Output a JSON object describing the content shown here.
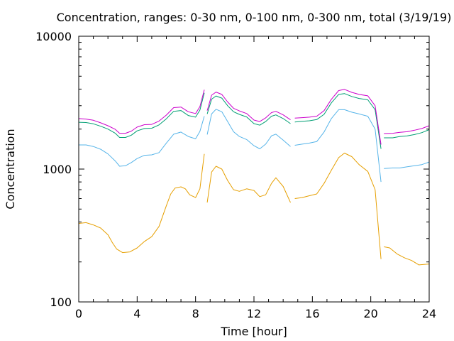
{
  "chart_data": {
    "type": "line",
    "title": "Concentration, ranges: 0-30 nm, 0-100 nm, 0-300 nm, total (3/19/19)",
    "xlabel": "Time [hour]",
    "ylabel": "Concentration",
    "xlim": [
      0,
      24
    ],
    "ylim": [
      100,
      10000
    ],
    "yscale": "log",
    "grid": false,
    "legend": "none",
    "x_ticks": [
      "0",
      "4",
      "8",
      "12",
      "16",
      "20",
      "24"
    ],
    "y_ticks": [
      "100",
      "1000",
      "10000"
    ],
    "series": [
      {
        "color": "#e69f00",
        "segments": [
          [
            [
              0,
              390
            ],
            [
              0.5,
              395
            ],
            [
              1,
              380
            ],
            [
              1.5,
              360
            ],
            [
              2,
              320
            ],
            [
              2.3,
              280
            ],
            [
              2.6,
              250
            ],
            [
              3,
              235
            ],
            [
              3.5,
              238
            ],
            [
              4,
              255
            ],
            [
              4.5,
              285
            ],
            [
              5,
              310
            ],
            [
              5.5,
              370
            ],
            [
              6,
              530
            ],
            [
              6.3,
              650
            ],
            [
              6.6,
              720
            ],
            [
              7,
              735
            ],
            [
              7.3,
              710
            ],
            [
              7.6,
              640
            ],
            [
              8,
              610
            ],
            [
              8.3,
              710
            ],
            [
              8.6,
              1300
            ]
          ],
          [
            [
              8.8,
              560
            ],
            [
              9.1,
              950
            ],
            [
              9.4,
              1050
            ],
            [
              9.8,
              1000
            ],
            [
              10.2,
              820
            ],
            [
              10.6,
              700
            ],
            [
              11,
              680
            ],
            [
              11.5,
              710
            ],
            [
              12,
              690
            ],
            [
              12.4,
              620
            ],
            [
              12.8,
              640
            ],
            [
              13.2,
              780
            ],
            [
              13.5,
              860
            ],
            [
              14,
              740
            ],
            [
              14.5,
              560
            ]
          ],
          [
            [
              14.8,
              600
            ],
            [
              15.3,
              610
            ],
            [
              15.8,
              630
            ],
            [
              16.3,
              650
            ],
            [
              16.8,
              780
            ],
            [
              17.3,
              980
            ],
            [
              17.8,
              1220
            ],
            [
              18.2,
              1320
            ],
            [
              18.7,
              1240
            ],
            [
              19.2,
              1080
            ],
            [
              19.8,
              960
            ],
            [
              20.3,
              700
            ],
            [
              20.7,
              210
            ]
          ],
          [
            [
              20.9,
              260
            ],
            [
              21.3,
              255
            ],
            [
              21.8,
              230
            ],
            [
              22.3,
              215
            ],
            [
              22.8,
              205
            ],
            [
              23.3,
              190
            ],
            [
              24,
              193
            ]
          ]
        ]
      },
      {
        "color": "#56b4e9",
        "segments": [
          [
            [
              0,
              1520
            ],
            [
              0.5,
              1520
            ],
            [
              1,
              1480
            ],
            [
              1.5,
              1410
            ],
            [
              2,
              1300
            ],
            [
              2.5,
              1150
            ],
            [
              2.8,
              1050
            ],
            [
              3.2,
              1060
            ],
            [
              3.6,
              1120
            ],
            [
              4,
              1200
            ],
            [
              4.5,
              1270
            ],
            [
              5,
              1280
            ],
            [
              5.5,
              1330
            ],
            [
              6,
              1570
            ],
            [
              6.5,
              1830
            ],
            [
              7,
              1900
            ],
            [
              7.5,
              1760
            ],
            [
              8,
              1690
            ],
            [
              8.3,
              1920
            ],
            [
              8.6,
              2500
            ]
          ],
          [
            [
              8.8,
              1820
            ],
            [
              9.1,
              2600
            ],
            [
              9.4,
              2820
            ],
            [
              9.8,
              2700
            ],
            [
              10.2,
              2280
            ],
            [
              10.6,
              1910
            ],
            [
              11,
              1760
            ],
            [
              11.5,
              1670
            ],
            [
              12,
              1500
            ],
            [
              12.4,
              1420
            ],
            [
              12.8,
              1540
            ],
            [
              13.2,
              1780
            ],
            [
              13.5,
              1830
            ],
            [
              14,
              1650
            ],
            [
              14.5,
              1480
            ]
          ],
          [
            [
              14.8,
              1510
            ],
            [
              15.3,
              1540
            ],
            [
              15.8,
              1570
            ],
            [
              16.3,
              1610
            ],
            [
              16.8,
              1900
            ],
            [
              17.3,
              2400
            ],
            [
              17.8,
              2800
            ],
            [
              18.2,
              2800
            ],
            [
              18.7,
              2680
            ],
            [
              19.2,
              2600
            ],
            [
              19.8,
              2500
            ],
            [
              20.3,
              2000
            ],
            [
              20.7,
              800
            ]
          ],
          [
            [
              20.9,
              1010
            ],
            [
              21.5,
              1020
            ],
            [
              22,
              1020
            ],
            [
              22.5,
              1040
            ],
            [
              23,
              1060
            ],
            [
              23.5,
              1080
            ],
            [
              24,
              1130
            ]
          ]
        ]
      },
      {
        "color": "#009e73",
        "segments": [
          [
            [
              0,
              2250
            ],
            [
              0.5,
              2240
            ],
            [
              1,
              2190
            ],
            [
              1.5,
              2100
            ],
            [
              2,
              2000
            ],
            [
              2.5,
              1860
            ],
            [
              2.8,
              1730
            ],
            [
              3.2,
              1730
            ],
            [
              3.6,
              1800
            ],
            [
              4,
              1940
            ],
            [
              4.5,
              2020
            ],
            [
              5,
              2030
            ],
            [
              5.5,
              2150
            ],
            [
              6,
              2390
            ],
            [
              6.5,
              2720
            ],
            [
              7,
              2760
            ],
            [
              7.5,
              2530
            ],
            [
              8,
              2460
            ],
            [
              8.3,
              2780
            ],
            [
              8.6,
              3750
            ]
          ],
          [
            [
              8.8,
              2600
            ],
            [
              9.1,
              3360
            ],
            [
              9.4,
              3550
            ],
            [
              9.8,
              3420
            ],
            [
              10.2,
              3000
            ],
            [
              10.6,
              2700
            ],
            [
              11,
              2580
            ],
            [
              11.5,
              2470
            ],
            [
              12,
              2200
            ],
            [
              12.4,
              2140
            ],
            [
              12.8,
              2280
            ],
            [
              13.2,
              2500
            ],
            [
              13.5,
              2560
            ],
            [
              14,
              2400
            ],
            [
              14.5,
              2200
            ]
          ],
          [
            [
              14.8,
              2260
            ],
            [
              15.3,
              2290
            ],
            [
              15.8,
              2310
            ],
            [
              16.3,
              2360
            ],
            [
              16.8,
              2580
            ],
            [
              17.3,
              3150
            ],
            [
              17.8,
              3650
            ],
            [
              18.2,
              3700
            ],
            [
              18.7,
              3520
            ],
            [
              19.2,
              3400
            ],
            [
              19.8,
              3320
            ],
            [
              20.3,
              2800
            ],
            [
              20.7,
              1420
            ]
          ],
          [
            [
              20.9,
              1720
            ],
            [
              21.5,
              1720
            ],
            [
              22,
              1760
            ],
            [
              22.5,
              1780
            ],
            [
              23,
              1820
            ],
            [
              23.5,
              1880
            ],
            [
              24,
              1980
            ]
          ]
        ]
      },
      {
        "color": "#cc00cc",
        "segments": [
          [
            [
              0,
              2400
            ],
            [
              0.5,
              2380
            ],
            [
              1,
              2330
            ],
            [
              1.5,
              2230
            ],
            [
              2,
              2120
            ],
            [
              2.5,
              1990
            ],
            [
              2.8,
              1860
            ],
            [
              3.2,
              1860
            ],
            [
              3.6,
              1930
            ],
            [
              4,
              2070
            ],
            [
              4.5,
              2160
            ],
            [
              5,
              2170
            ],
            [
              5.5,
              2300
            ],
            [
              6,
              2550
            ],
            [
              6.5,
              2900
            ],
            [
              7,
              2930
            ],
            [
              7.5,
              2700
            ],
            [
              8,
              2620
            ],
            [
              8.3,
              2950
            ],
            [
              8.6,
              3950
            ]
          ],
          [
            [
              8.8,
              2750
            ],
            [
              9.1,
              3600
            ],
            [
              9.4,
              3800
            ],
            [
              9.8,
              3650
            ],
            [
              10.2,
              3200
            ],
            [
              10.6,
              2870
            ],
            [
              11,
              2740
            ],
            [
              11.5,
              2620
            ],
            [
              12,
              2340
            ],
            [
              12.4,
              2280
            ],
            [
              12.8,
              2430
            ],
            [
              13.2,
              2660
            ],
            [
              13.5,
              2720
            ],
            [
              14,
              2560
            ],
            [
              14.5,
              2350
            ]
          ],
          [
            [
              14.8,
              2420
            ],
            [
              15.3,
              2440
            ],
            [
              15.8,
              2460
            ],
            [
              16.3,
              2500
            ],
            [
              16.8,
              2750
            ],
            [
              17.3,
              3350
            ],
            [
              17.8,
              3900
            ],
            [
              18.2,
              3980
            ],
            [
              18.7,
              3780
            ],
            [
              19.2,
              3650
            ],
            [
              19.8,
              3560
            ],
            [
              20.3,
              3000
            ],
            [
              20.7,
              1530
            ]
          ],
          [
            [
              20.9,
              1850
            ],
            [
              21.5,
              1860
            ],
            [
              22,
              1890
            ],
            [
              22.5,
              1910
            ],
            [
              23,
              1960
            ],
            [
              23.5,
              2020
            ],
            [
              24,
              2120
            ]
          ]
        ]
      }
    ]
  }
}
